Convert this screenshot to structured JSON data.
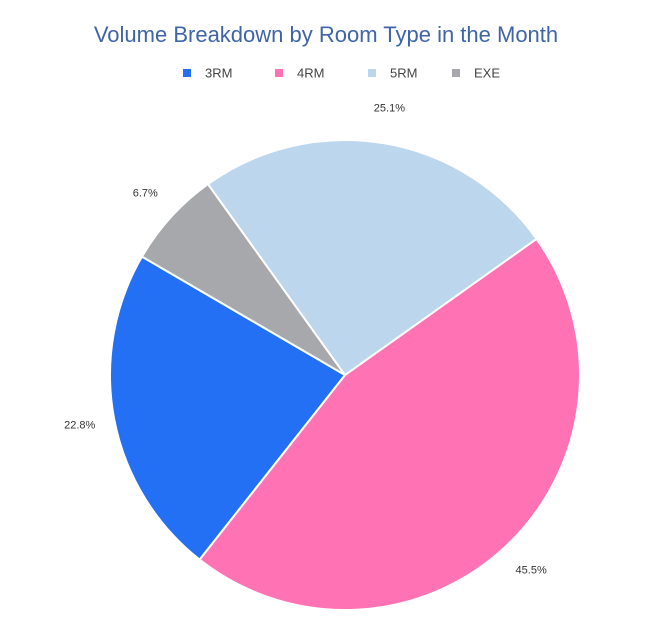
{
  "chart_data": {
    "type": "pie",
    "title": "Volume Breakdown by Room Type in the Month",
    "categories": [
      "3RM",
      "4RM",
      "5RM",
      "EXE"
    ],
    "values": [
      22.8,
      45.5,
      25.1,
      6.7
    ],
    "value_labels": [
      "22.8%",
      "45.5%",
      "25.1%",
      "6.7%"
    ],
    "colors": [
      "#2370f5",
      "#ff73b5",
      "#bcd6ee",
      "#a7a8ac"
    ],
    "legend": "top"
  }
}
